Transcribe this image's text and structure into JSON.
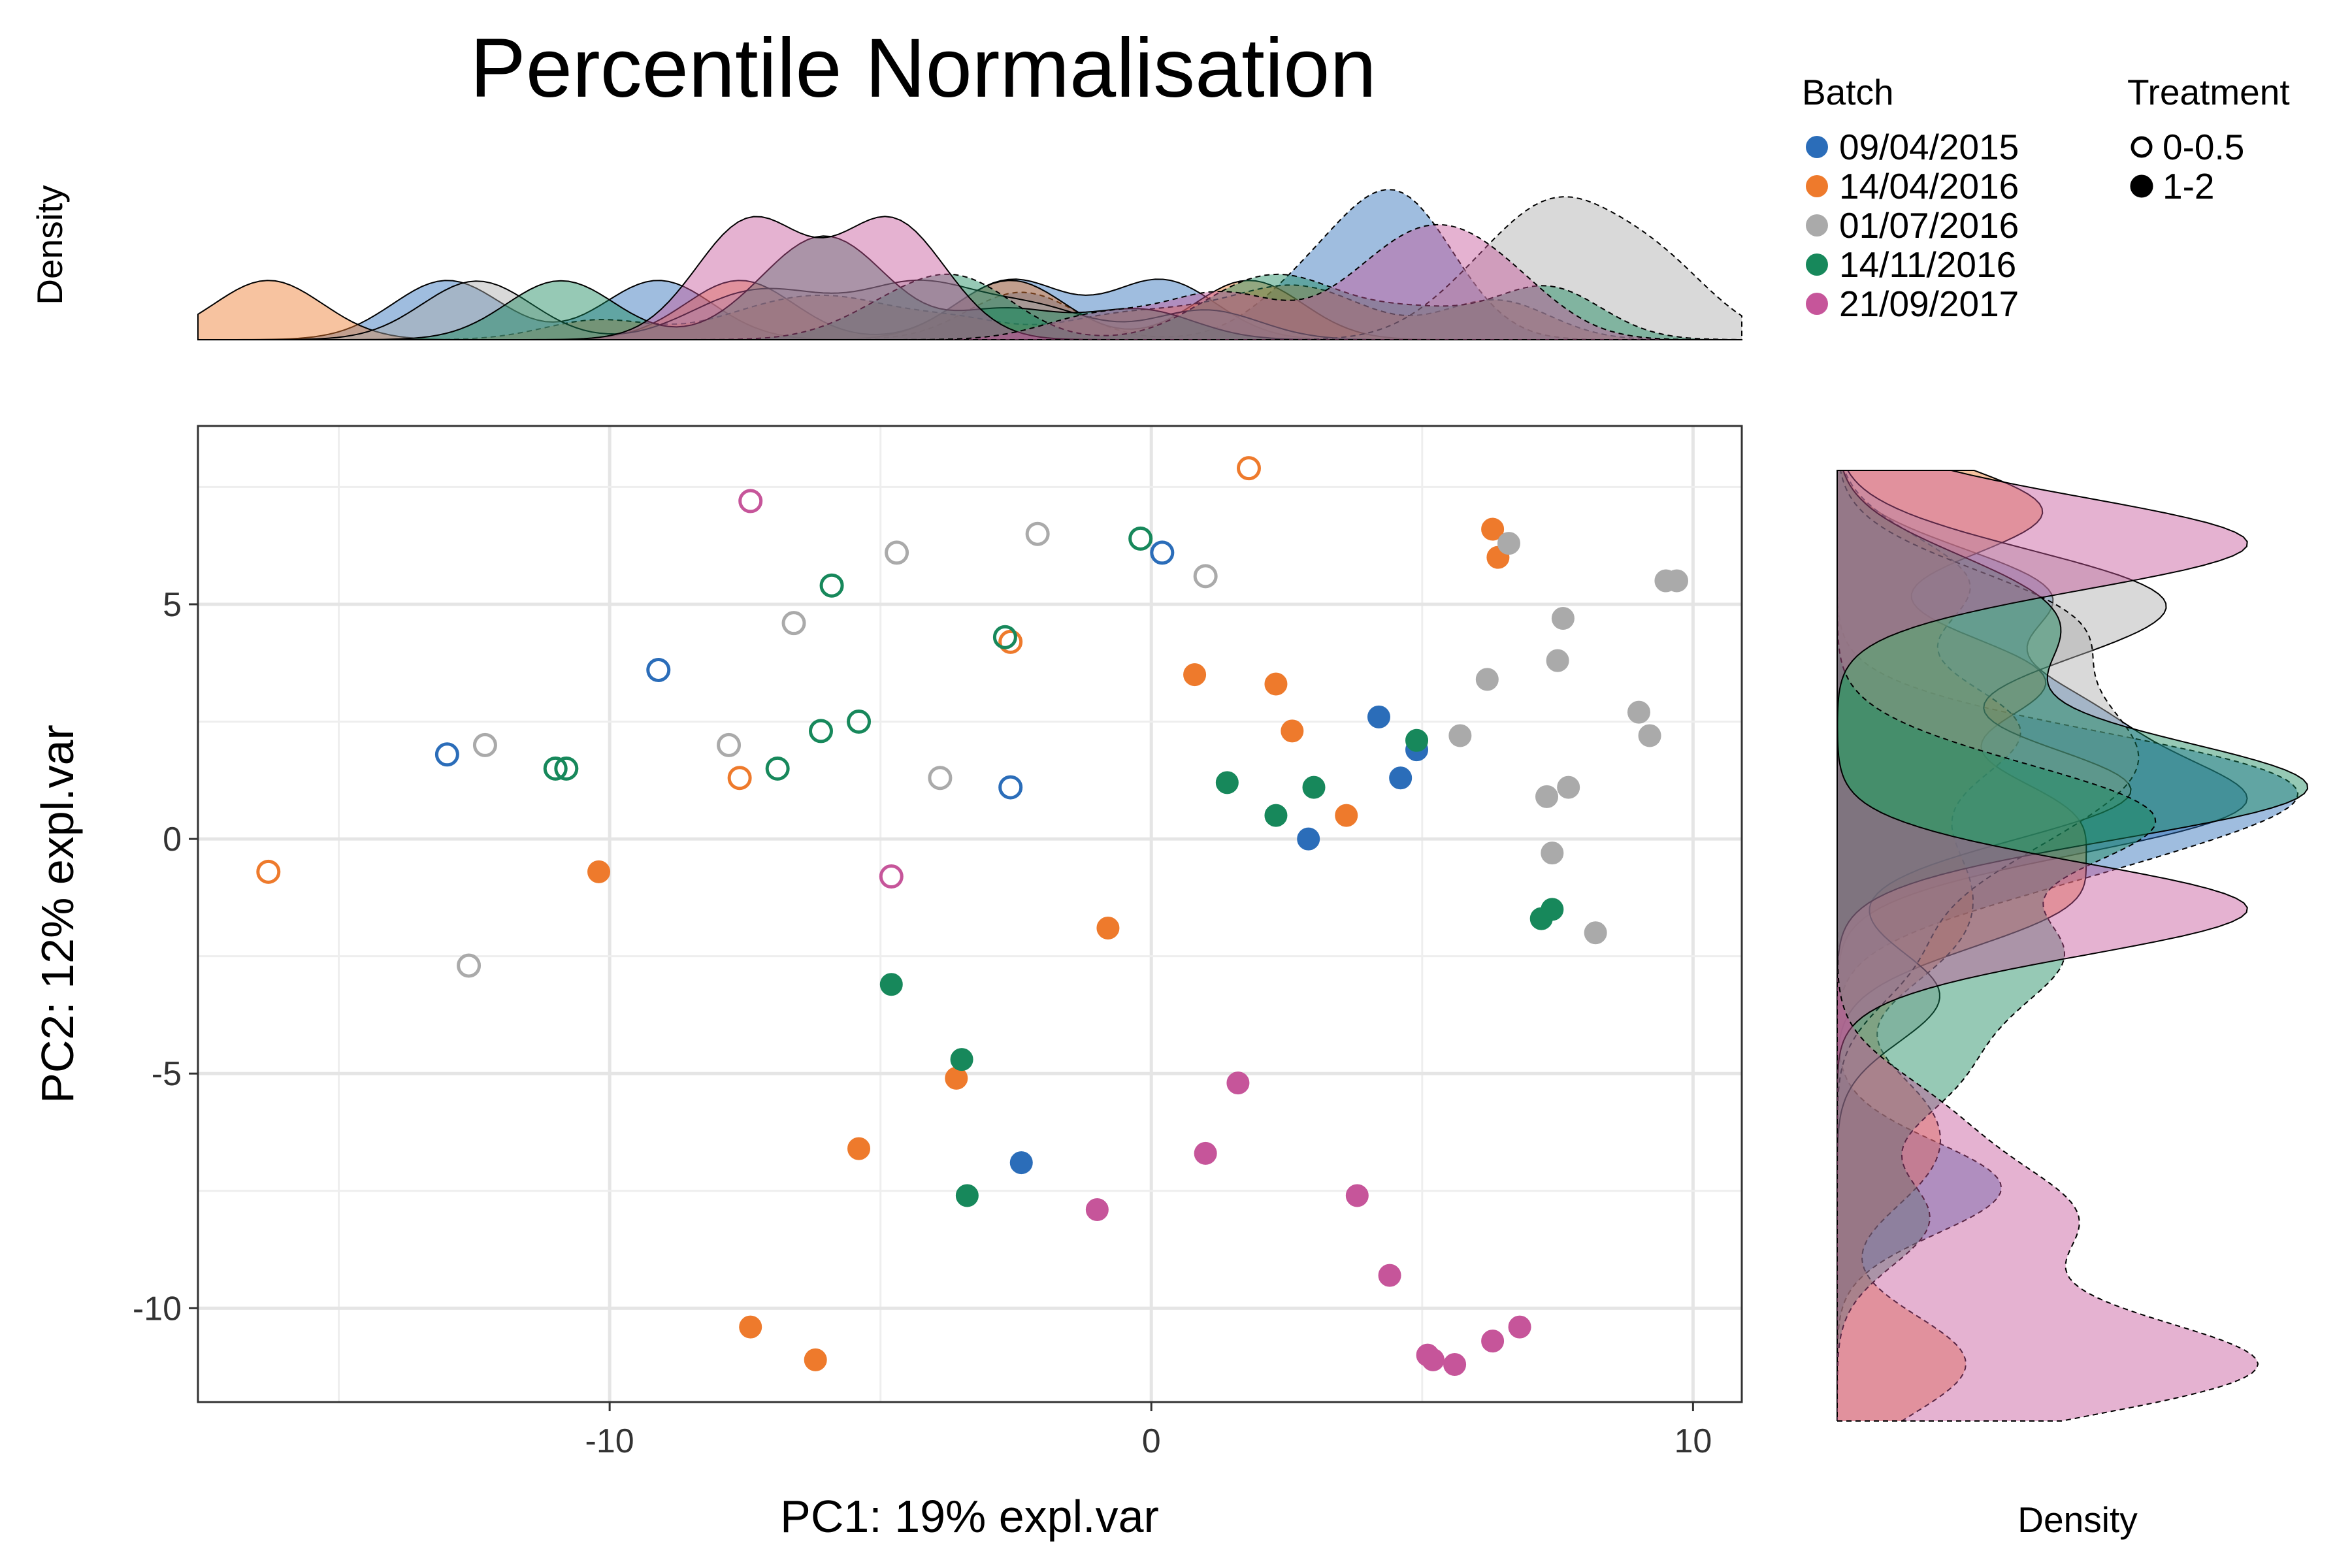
{
  "chart_data": {
    "type": "scatter",
    "title": "Percentile Normalisation",
    "xlabel": "PC1: 19% expl.var",
    "ylabel": "PC2: 12% expl.var",
    "xlim": [
      -17.6,
      10.9
    ],
    "ylim": [
      -12.0,
      8.8
    ],
    "x_ticks": [
      -10,
      0,
      10
    ],
    "y_ticks": [
      5,
      0,
      -5,
      -10
    ],
    "x_tick_labels": [
      "-10",
      "0",
      "10"
    ],
    "y_tick_labels": [
      "5",
      "0",
      "-5",
      "-10"
    ],
    "grid": true,
    "top_density_label": "Density",
    "right_density_label": "Density",
    "legend": {
      "position": "top-right",
      "batch_title": "Batch",
      "treatment_title": "Treatment",
      "treatments": [
        {
          "label": "0-0.5",
          "filled": false
        },
        {
          "label": "1-2",
          "filled": true
        }
      ]
    },
    "series": [
      {
        "name": "09/04/2015",
        "color": "#2B6DB9",
        "points": [
          {
            "x": -13.0,
            "y": 1.8,
            "t": "0-0.5"
          },
          {
            "x": -9.1,
            "y": 3.6,
            "t": "0-0.5"
          },
          {
            "x": -2.6,
            "y": 1.1,
            "t": "0-0.5"
          },
          {
            "x": 0.2,
            "y": 6.1,
            "t": "0-0.5"
          },
          {
            "x": 4.2,
            "y": 2.6,
            "t": "1-2"
          },
          {
            "x": 4.6,
            "y": 1.3,
            "t": "1-2"
          },
          {
            "x": 4.9,
            "y": 1.9,
            "t": "1-2"
          },
          {
            "x": 2.9,
            "y": 0.0,
            "t": "1-2"
          },
          {
            "x": -2.4,
            "y": -6.9,
            "t": "1-2"
          }
        ]
      },
      {
        "name": "14/04/2016",
        "color": "#EE7A2C",
        "points": [
          {
            "x": -16.3,
            "y": -0.7,
            "t": "0-0.5"
          },
          {
            "x": -7.6,
            "y": 1.3,
            "t": "0-0.5"
          },
          {
            "x": -2.6,
            "y": 4.2,
            "t": "0-0.5"
          },
          {
            "x": 1.8,
            "y": 7.9,
            "t": "0-0.5"
          },
          {
            "x": -10.2,
            "y": -0.7,
            "t": "1-2"
          },
          {
            "x": 0.8,
            "y": 3.5,
            "t": "1-2"
          },
          {
            "x": 2.3,
            "y": 3.3,
            "t": "1-2"
          },
          {
            "x": 2.6,
            "y": 2.3,
            "t": "1-2"
          },
          {
            "x": 3.6,
            "y": 0.5,
            "t": "1-2"
          },
          {
            "x": 6.3,
            "y": 6.6,
            "t": "1-2"
          },
          {
            "x": 6.4,
            "y": 6.0,
            "t": "1-2"
          },
          {
            "x": -0.8,
            "y": -1.9,
            "t": "1-2"
          },
          {
            "x": -3.6,
            "y": -5.1,
            "t": "1-2"
          },
          {
            "x": -5.4,
            "y": -6.6,
            "t": "1-2"
          },
          {
            "x": -7.4,
            "y": -10.4,
            "t": "1-2"
          },
          {
            "x": -6.2,
            "y": -11.1,
            "t": "1-2"
          }
        ]
      },
      {
        "name": "01/07/2016",
        "color": "#AAAAAA",
        "points": [
          {
            "x": -12.3,
            "y": 2.0,
            "t": "0-0.5"
          },
          {
            "x": -7.8,
            "y": 2.0,
            "t": "0-0.5"
          },
          {
            "x": -6.6,
            "y": 4.6,
            "t": "0-0.5"
          },
          {
            "x": -4.7,
            "y": 6.1,
            "t": "0-0.5"
          },
          {
            "x": -3.9,
            "y": 1.3,
            "t": "0-0.5"
          },
          {
            "x": -2.1,
            "y": 6.5,
            "t": "0-0.5"
          },
          {
            "x": 1.0,
            "y": 5.6,
            "t": "0-0.5"
          },
          {
            "x": -12.6,
            "y": -2.7,
            "t": "0-0.5"
          },
          {
            "x": 6.6,
            "y": 6.3,
            "t": "1-2"
          },
          {
            "x": 7.6,
            "y": 4.7,
            "t": "1-2"
          },
          {
            "x": 7.5,
            "y": 3.8,
            "t": "1-2"
          },
          {
            "x": 6.2,
            "y": 3.4,
            "t": "1-2"
          },
          {
            "x": 5.7,
            "y": 2.2,
            "t": "1-2"
          },
          {
            "x": 9.0,
            "y": 2.7,
            "t": "1-2"
          },
          {
            "x": 9.2,
            "y": 2.2,
            "t": "1-2"
          },
          {
            "x": 9.5,
            "y": 5.5,
            "t": "1-2"
          },
          {
            "x": 9.7,
            "y": 5.5,
            "t": "1-2"
          },
          {
            "x": 7.3,
            "y": 0.9,
            "t": "1-2"
          },
          {
            "x": 7.7,
            "y": 1.1,
            "t": "1-2"
          },
          {
            "x": 7.4,
            "y": -0.3,
            "t": "1-2"
          },
          {
            "x": 8.2,
            "y": -2.0,
            "t": "1-2"
          }
        ]
      },
      {
        "name": "14/11/2016",
        "color": "#17885B",
        "points": [
          {
            "x": -11.0,
            "y": 1.5,
            "t": "0-0.5"
          },
          {
            "x": -10.8,
            "y": 1.5,
            "t": "0-0.5"
          },
          {
            "x": -6.9,
            "y": 1.5,
            "t": "0-0.5"
          },
          {
            "x": -6.1,
            "y": 2.3,
            "t": "0-0.5"
          },
          {
            "x": -5.9,
            "y": 5.4,
            "t": "0-0.5"
          },
          {
            "x": -5.4,
            "y": 2.5,
            "t": "0-0.5"
          },
          {
            "x": -2.7,
            "y": 4.3,
            "t": "0-0.5"
          },
          {
            "x": -0.2,
            "y": 6.4,
            "t": "0-0.5"
          },
          {
            "x": 1.4,
            "y": 1.2,
            "t": "1-2"
          },
          {
            "x": 2.3,
            "y": 0.5,
            "t": "1-2"
          },
          {
            "x": 3.0,
            "y": 1.1,
            "t": "1-2"
          },
          {
            "x": 4.9,
            "y": 2.1,
            "t": "1-2"
          },
          {
            "x": 7.2,
            "y": -1.7,
            "t": "1-2"
          },
          {
            "x": 7.4,
            "y": -1.5,
            "t": "1-2"
          },
          {
            "x": -4.8,
            "y": -3.1,
            "t": "1-2"
          },
          {
            "x": -3.5,
            "y": -4.7,
            "t": "1-2"
          },
          {
            "x": -3.4,
            "y": -7.6,
            "t": "1-2"
          }
        ]
      },
      {
        "name": "21/09/2017",
        "color": "#C6559A",
        "points": [
          {
            "x": -7.4,
            "y": 7.2,
            "t": "0-0.5"
          },
          {
            "x": -4.8,
            "y": -0.8,
            "t": "0-0.5"
          },
          {
            "x": 1.6,
            "y": -5.2,
            "t": "1-2"
          },
          {
            "x": 1.0,
            "y": -6.7,
            "t": "1-2"
          },
          {
            "x": -1.0,
            "y": -7.9,
            "t": "1-2"
          },
          {
            "x": 3.8,
            "y": -7.6,
            "t": "1-2"
          },
          {
            "x": 4.4,
            "y": -9.3,
            "t": "1-2"
          },
          {
            "x": 5.1,
            "y": -11.0,
            "t": "1-2"
          },
          {
            "x": 5.2,
            "y": -11.1,
            "t": "1-2"
          },
          {
            "x": 5.6,
            "y": -11.2,
            "t": "1-2"
          },
          {
            "x": 6.3,
            "y": -10.7,
            "t": "1-2"
          },
          {
            "x": 6.8,
            "y": -10.4,
            "t": "1-2"
          }
        ]
      }
    ]
  }
}
